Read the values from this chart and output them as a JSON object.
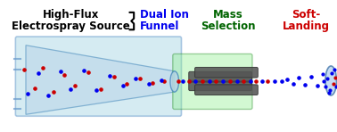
{
  "title_line1": "High-Flux",
  "title_line2": "Electrospray Source",
  "label_dual_ion1": "Dual Ion",
  "label_dual_ion2": "Funnel",
  "label_mass1": "Mass",
  "label_mass2": "Selection",
  "label_soft1": "Soft-",
  "label_soft2": "Landing",
  "color_title": "#000000",
  "color_dual_ion": "#0000EE",
  "color_mass": "#006400",
  "color_soft": "#CC0000",
  "bg_color": "#FFFFFF",
  "dot_red": "#CC0000",
  "dot_blue": "#0000EE",
  "chamber_face": "#ADD8E6",
  "chamber_edge": "#6699CC",
  "funnel_face": "#B8D4E8",
  "funnel_edge": "#4488BB",
  "green_face": "#90EE90",
  "green_edge": "#228B22",
  "rod_face": "#555555",
  "rod_edge": "#333333",
  "landing_face": "#B8D4F0",
  "landing_edge": "#4477AA"
}
